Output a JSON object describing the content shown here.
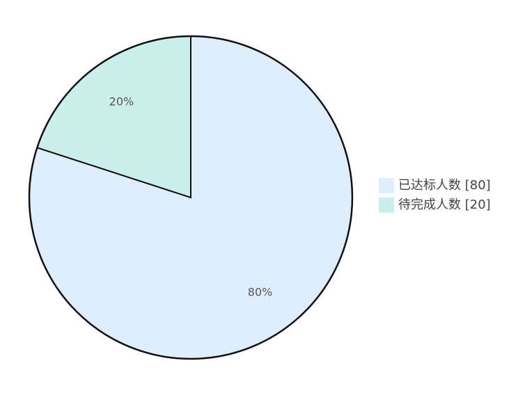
{
  "chart_data": {
    "type": "pie",
    "categories": [
      "已达标人数 [80]",
      "待完成人数 [20]"
    ],
    "values": [
      80,
      20
    ],
    "value_labels": [
      "80%",
      "20%"
    ],
    "colors": [
      "#dfeeff",
      "#cbf0ec"
    ],
    "legend": "right"
  }
}
